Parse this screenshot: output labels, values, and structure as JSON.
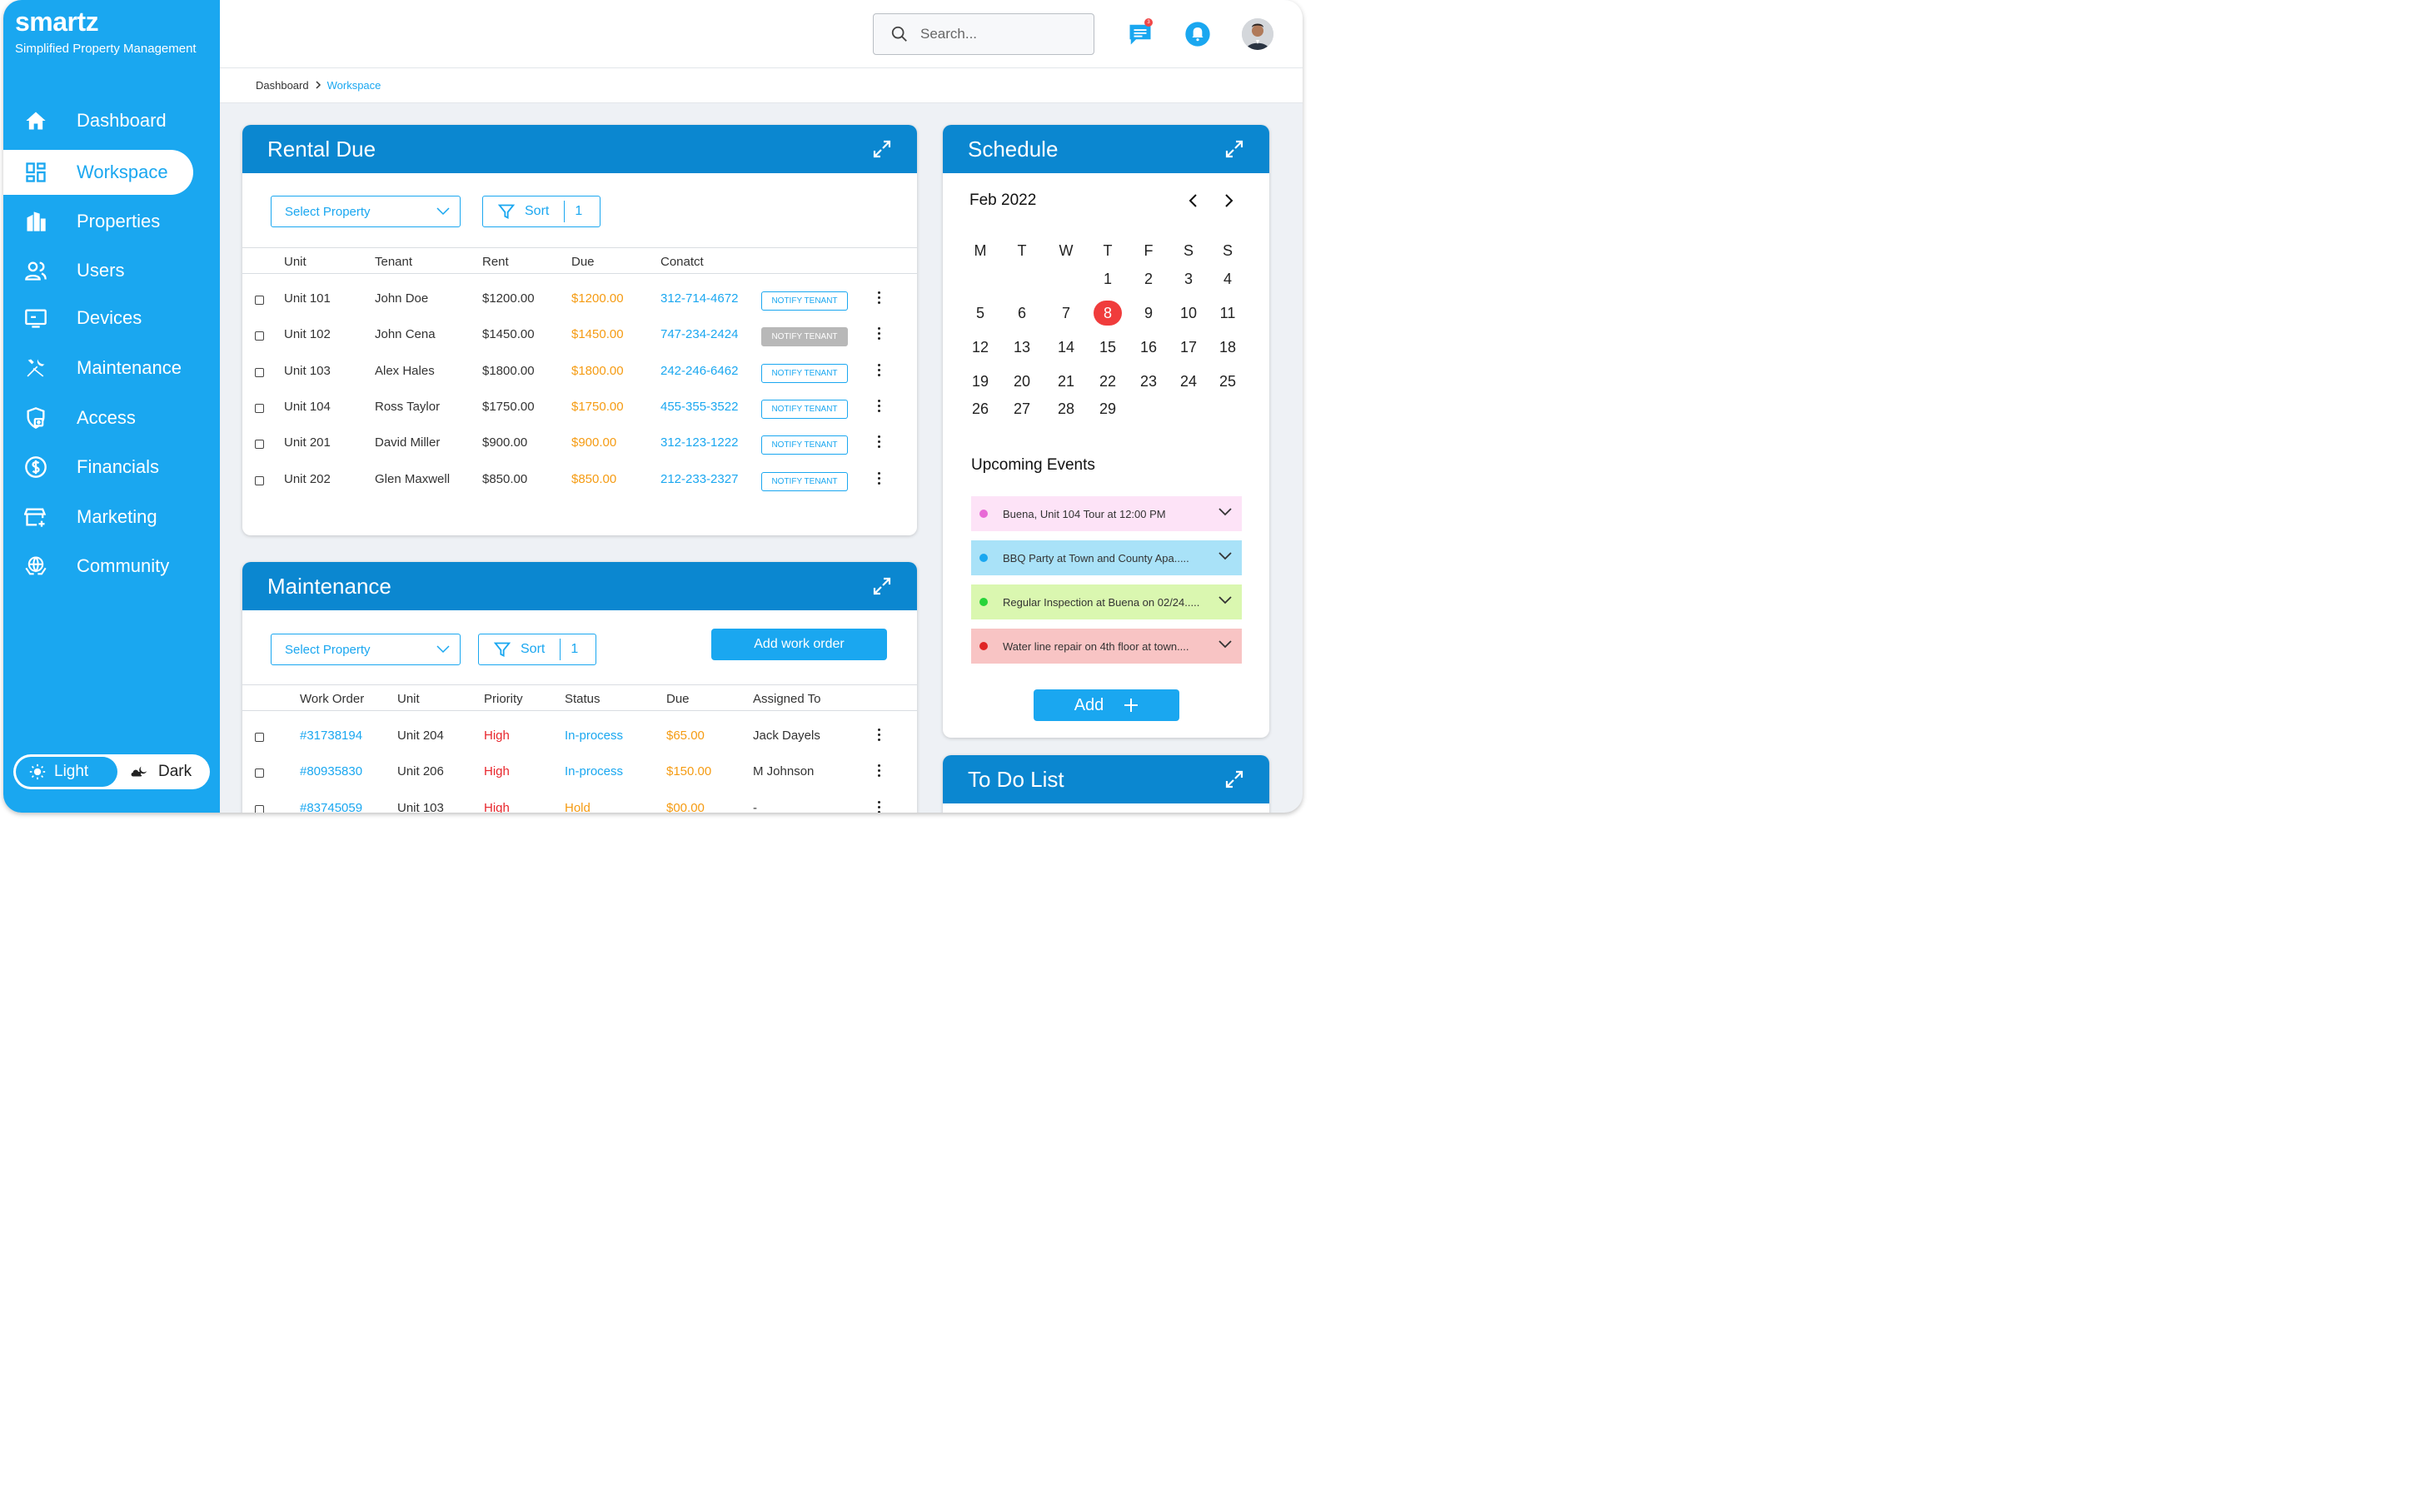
{
  "brand": {
    "logo": "smartz",
    "tagline": "Simplified Property Management"
  },
  "nav": [
    {
      "label": "Dashboard",
      "icon": "home-icon"
    },
    {
      "label": "Workspace",
      "icon": "grid-icon",
      "active": true
    },
    {
      "label": "Properties",
      "icon": "building-icon"
    },
    {
      "label": "Users",
      "icon": "users-icon"
    },
    {
      "label": "Devices",
      "icon": "monitor-icon"
    },
    {
      "label": "Maintenance",
      "icon": "tools-icon"
    },
    {
      "label": "Access",
      "icon": "shield-lock-icon"
    },
    {
      "label": "Financials",
      "icon": "dollar-icon"
    },
    {
      "label": "Marketing",
      "icon": "store-icon"
    },
    {
      "label": "Community",
      "icon": "globe-hands-icon"
    }
  ],
  "theme": {
    "light": "Light",
    "dark": "Dark"
  },
  "search": {
    "placeholder": "Search..."
  },
  "notifications": {
    "message_badge": "3"
  },
  "breadcrumb": {
    "root": "Dashboard",
    "current": "Workspace"
  },
  "rental": {
    "title": "Rental Due",
    "select_placeholder": "Select Property",
    "sort_label": "Sort",
    "sort_count": "1",
    "columns": [
      "Unit",
      "Tenant",
      "Rent",
      "Due",
      "Conatct"
    ],
    "rows": [
      {
        "unit": "Unit 101",
        "tenant": "John Doe",
        "rent": "$1200.00",
        "due": "$1200.00",
        "contact": "312-714-4672",
        "action": "NOTIFY TENANT",
        "disabled": false
      },
      {
        "unit": "Unit 102",
        "tenant": "John Cena",
        "rent": "$1450.00",
        "due": "$1450.00",
        "contact": "747-234-2424",
        "action": "NOTIFY TENANT",
        "disabled": true
      },
      {
        "unit": "Unit 103",
        "tenant": "Alex Hales",
        "rent": "$1800.00",
        "due": "$1800.00",
        "contact": "242-246-6462",
        "action": "NOTIFY TENANT",
        "disabled": false
      },
      {
        "unit": "Unit 104",
        "tenant": "Ross Taylor",
        "rent": "$1750.00",
        "due": "$1750.00",
        "contact": "455-355-3522",
        "action": "NOTIFY TENANT",
        "disabled": false
      },
      {
        "unit": "Unit 201",
        "tenant": "David Miller",
        "rent": "$900.00",
        "due": "$900.00",
        "contact": "312-123-1222",
        "action": "NOTIFY TENANT",
        "disabled": false
      },
      {
        "unit": "Unit 202",
        "tenant": "Glen Maxwell",
        "rent": "$850.00",
        "due": "$850.00",
        "contact": "212-233-2327",
        "action": "NOTIFY TENANT",
        "disabled": false
      }
    ]
  },
  "maintenance": {
    "title": "Maintenance",
    "select_placeholder": "Select Property",
    "sort_label": "Sort",
    "sort_count": "1",
    "add_label": "Add work order",
    "columns": [
      "Work Order",
      "Unit",
      "Priority",
      "Status",
      "Due",
      "Assigned To"
    ],
    "rows": [
      {
        "order": "#31738194",
        "unit": "Unit 204",
        "priority": "High",
        "status": "In-process",
        "due": "$65.00",
        "assigned": "Jack Dayels"
      },
      {
        "order": "#80935830",
        "unit": "Unit 206",
        "priority": "High",
        "status": "In-process",
        "due": "$150.00",
        "assigned": "M Johnson"
      },
      {
        "order": "#83745059",
        "unit": "Unit 103",
        "priority": "High",
        "status": "Hold",
        "due": "$00.00",
        "assigned": "-"
      }
    ]
  },
  "schedule": {
    "title": "Schedule",
    "month": "Feb 2022",
    "weekdays": [
      "M",
      "T",
      "W",
      "T",
      "F",
      "S",
      "S"
    ],
    "days": [
      [
        "",
        "",
        "",
        "1",
        "2",
        "3",
        "4"
      ],
      [
        "5",
        "6",
        "7",
        "8",
        "9",
        "10",
        "11"
      ],
      [
        "12",
        "13",
        "14",
        "15",
        "16",
        "17",
        "18"
      ],
      [
        "19",
        "20",
        "21",
        "22",
        "23",
        "24",
        "25"
      ],
      [
        "26",
        "27",
        "28",
        "29",
        "",
        "",
        ""
      ]
    ],
    "today": "8",
    "events_title": "Upcoming Events",
    "events": [
      {
        "text": "Buena, Unit 104 Tour at 12:00 PM",
        "bg": "#fde3f7",
        "dot": "#e86ad6"
      },
      {
        "text": "BBQ Party at Town and County Apa.....",
        "bg": "#a9e2f8",
        "dot": "#1aa7f0"
      },
      {
        "text": "Regular Inspection at Buena on 02/24.....",
        "bg": "#daf7b0",
        "dot": "#27d43a"
      },
      {
        "text": "Water line repair on 4th floor at town....",
        "bg": "#f8c4c4",
        "dot": "#e02525"
      }
    ],
    "add_label": "Add"
  },
  "todo": {
    "title": "To Do List"
  },
  "colors": {
    "primary": "#1aa7f0",
    "header": "#0b87d0",
    "orange": "#f59b12",
    "red": "#e8262c"
  }
}
